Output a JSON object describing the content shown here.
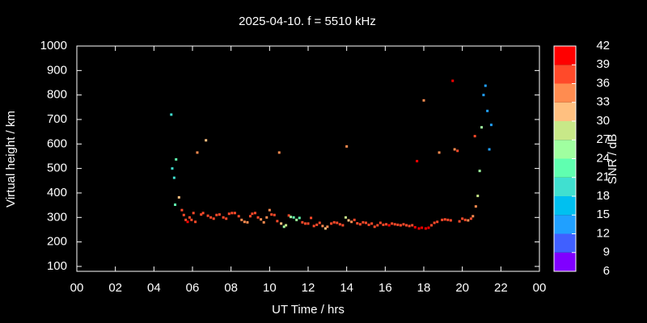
{
  "chart_data": {
    "type": "scatter",
    "title": "2025-04-10. f = 5510 kHz",
    "x_label": "UT Time / hrs",
    "y_label": "Virtual height / km",
    "colorbar_label": "SNR / dB",
    "xlim": [
      0,
      24
    ],
    "xticks": [
      {
        "value": 0,
        "label": "00"
      },
      {
        "value": 2,
        "label": "02"
      },
      {
        "value": 4,
        "label": "04"
      },
      {
        "value": 6,
        "label": "06"
      },
      {
        "value": 8,
        "label": "08"
      },
      10,
      12,
      14,
      16,
      18,
      20,
      22,
      {
        "value": 24,
        "label": "00"
      }
    ],
    "ylim": [
      80,
      1000
    ],
    "yticks": [
      100,
      200,
      300,
      400,
      500,
      600,
      700,
      800,
      900,
      1000
    ],
    "clim": [
      6,
      42
    ],
    "cticks": [
      6,
      9,
      12,
      15,
      18,
      21,
      24,
      27,
      30,
      33,
      36,
      39,
      42
    ],
    "colors": [
      "#8000ff",
      "#4060ff",
      "#20a0ff",
      "#00c0f0",
      "#40e0d0",
      "#60ffb0",
      "#a0ffa0",
      "#c8e888",
      "#ffc080",
      "#ff8c50",
      "#ff4a2a",
      "#ff0000"
    ],
    "x": [
      4.9,
      4.95,
      5.05,
      5.15,
      5.1,
      5.3,
      5.45,
      5.55,
      5.65,
      5.75,
      5.85,
      5.95,
      6.05,
      6.15,
      6.25,
      6.45,
      6.55,
      6.7,
      6.8,
      6.95,
      7.1,
      7.25,
      7.4,
      7.6,
      7.75,
      7.9,
      8.05,
      8.2,
      8.4,
      8.55,
      8.7,
      8.85,
      9.0,
      9.1,
      9.25,
      9.4,
      9.55,
      9.7,
      9.85,
      10.0,
      10.1,
      10.25,
      10.4,
      10.5,
      10.6,
      10.75,
      10.85,
      11.0,
      11.1,
      11.25,
      11.4,
      11.55,
      11.7,
      11.85,
      12.0,
      12.15,
      12.3,
      12.45,
      12.6,
      12.75,
      12.9,
      13.0,
      13.2,
      13.35,
      13.5,
      13.65,
      13.8,
      13.95,
      14.0,
      14.1,
      14.25,
      14.4,
      14.55,
      14.7,
      14.85,
      15.0,
      15.15,
      15.3,
      15.45,
      15.6,
      15.75,
      15.9,
      16.05,
      16.2,
      16.35,
      16.5,
      16.65,
      16.8,
      16.95,
      17.1,
      17.25,
      17.4,
      17.55,
      17.65,
      17.75,
      17.9,
      18.0,
      18.1,
      18.25,
      18.4,
      18.55,
      18.7,
      18.8,
      18.95,
      19.1,
      19.25,
      19.4,
      19.5,
      19.6,
      19.75,
      19.85,
      20.0,
      20.15,
      20.3,
      20.45,
      20.55,
      20.65,
      20.7,
      20.8,
      20.9,
      21.0,
      21.1,
      21.2,
      21.3,
      21.4,
      21.5
    ],
    "y": [
      720,
      500,
      462,
      537,
      352,
      382,
      330,
      310,
      290,
      282,
      300,
      290,
      318,
      282,
      565,
      312,
      318,
      615,
      307,
      300,
      295,
      310,
      312,
      300,
      295,
      315,
      318,
      318,
      305,
      290,
      282,
      280,
      305,
      315,
      318,
      300,
      292,
      280,
      300,
      330,
      312,
      310,
      285,
      565,
      275,
      262,
      268,
      308,
      302,
      300,
      290,
      298,
      280,
      275,
      275,
      298,
      265,
      270,
      278,
      265,
      255,
      262,
      275,
      280,
      278,
      272,
      268,
      300,
      590,
      288,
      282,
      290,
      276,
      272,
      280,
      278,
      270,
      275,
      262,
      268,
      278,
      270,
      272,
      268,
      275,
      272,
      270,
      268,
      272,
      268,
      265,
      268,
      260,
      530,
      255,
      258,
      778,
      255,
      258,
      268,
      278,
      282,
      565,
      290,
      292,
      290,
      288,
      858,
      578,
      572,
      284,
      295,
      290,
      288,
      295,
      305,
      632,
      345,
      388,
      490,
      668,
      800,
      838,
      735,
      578,
      678
    ],
    "snr": [
      20,
      19,
      19,
      23,
      23,
      32,
      38,
      38,
      38,
      40,
      37,
      38,
      36,
      37,
      35,
      37,
      36,
      31,
      37,
      36,
      37,
      37,
      36,
      37,
      37,
      37,
      36,
      37,
      37,
      35,
      33,
      35,
      36,
      37,
      36,
      37,
      35,
      34,
      33,
      33,
      36,
      37,
      38,
      34,
      30,
      26,
      28,
      38,
      24,
      23,
      25,
      22,
      38,
      37,
      38,
      38,
      37,
      36,
      37,
      33,
      32,
      35,
      37,
      37,
      38,
      38,
      38,
      28,
      35,
      30,
      34,
      36,
      37,
      38,
      38,
      37,
      38,
      38,
      38,
      38,
      38,
      38,
      38,
      39,
      38,
      38,
      38,
      38,
      38,
      38,
      38,
      38,
      39,
      40,
      39,
      39,
      35,
      40,
      40,
      38,
      37,
      36,
      34,
      38,
      38,
      38,
      37,
      39,
      35,
      36,
      37,
      36,
      36,
      35,
      37,
      35,
      37,
      35,
      27,
      24,
      25,
      12,
      13,
      13,
      12,
      13
    ]
  }
}
